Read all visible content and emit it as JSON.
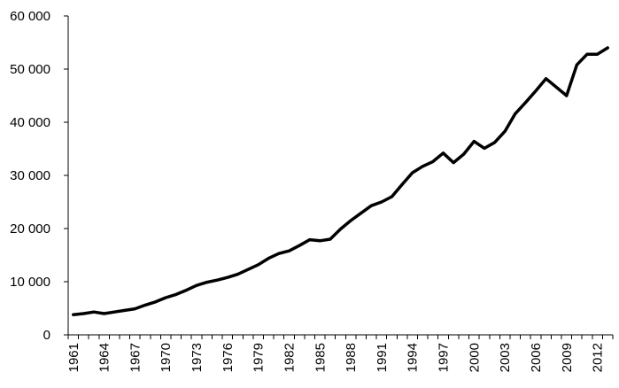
{
  "chart_data": {
    "type": "line",
    "title": "",
    "xlabel": "",
    "ylabel": "",
    "x": [
      1961,
      1962,
      1963,
      1964,
      1965,
      1966,
      1967,
      1968,
      1969,
      1970,
      1971,
      1972,
      1973,
      1974,
      1975,
      1976,
      1977,
      1978,
      1979,
      1980,
      1981,
      1982,
      1983,
      1984,
      1985,
      1986,
      1987,
      1988,
      1989,
      1990,
      1991,
      1992,
      1993,
      1994,
      1995,
      1996,
      1997,
      1998,
      1999,
      2000,
      2001,
      2002,
      2003,
      2004,
      2005,
      2006,
      2007,
      2008,
      2009,
      2010,
      2011,
      2012,
      2013
    ],
    "series": [
      {
        "values": [
          3800,
          4000,
          4300,
          4000,
          4300,
          4600,
          4900,
          5600,
          6200,
          7000,
          7600,
          8400,
          9300,
          9900,
          10300,
          10800,
          11400,
          12300,
          13200,
          14400,
          15300,
          15800,
          16800,
          17900,
          17700,
          18000,
          19900,
          21500,
          22900,
          24300,
          25000,
          26000,
          28300,
          30500,
          31700,
          32600,
          34200,
          32400,
          34000,
          36400,
          35100,
          36200,
          38300,
          41600,
          43700,
          45900,
          48200,
          46600,
          45000,
          50800,
          52800,
          52800,
          54000
        ]
      }
    ],
    "x_tick_labels": [
      "1961",
      "1964",
      "1967",
      "1970",
      "1973",
      "1976",
      "1979",
      "1982",
      "1985",
      "1988",
      "1991",
      "1994",
      "1997",
      "2000",
      "2003",
      "2006",
      "2009",
      "2012"
    ],
    "y_tick_labels": [
      "0",
      "10 000",
      "20 000",
      "30 000",
      "40 000",
      "50 000",
      "60 000"
    ],
    "y_ticks": [
      0,
      10000,
      20000,
      30000,
      40000,
      50000,
      60000
    ],
    "ylim": [
      0,
      60000
    ],
    "xlim": [
      1960.5,
      2013.5
    ],
    "grid": false,
    "legend": "none",
    "line_color": "#000000"
  }
}
